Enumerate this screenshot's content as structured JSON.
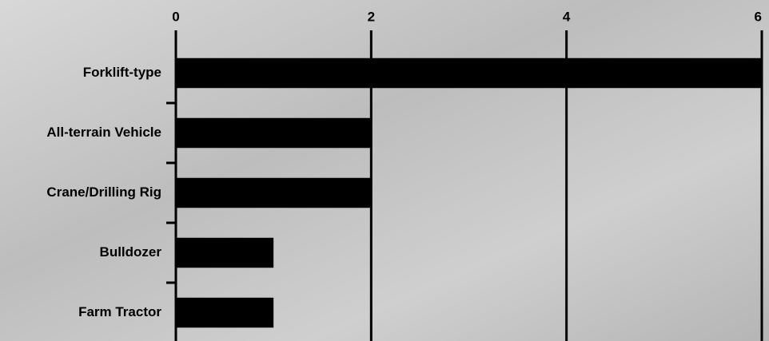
{
  "chart_data": {
    "type": "bar",
    "orientation": "horizontal",
    "categories": [
      "Forklift-type",
      "All-terrain Vehicle",
      "Crane/Drilling Rig",
      "Bulldozer",
      "Farm Tractor"
    ],
    "values": [
      6,
      2,
      2,
      1,
      1
    ],
    "color": "#000000",
    "xlim": [
      0,
      6
    ],
    "xticks": [
      0,
      2,
      4,
      6
    ],
    "grid": true
  }
}
